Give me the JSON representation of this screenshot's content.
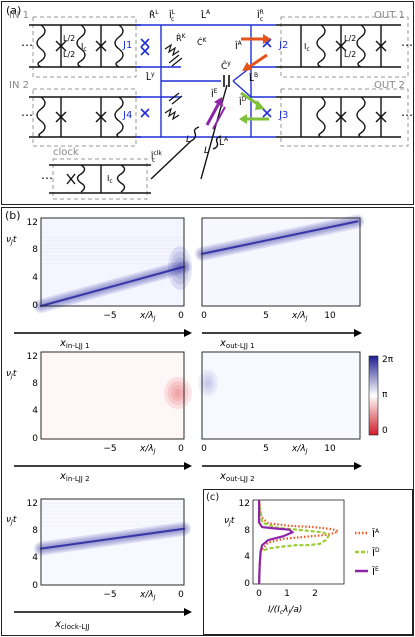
{
  "panel_a": {
    "letter": "(a)",
    "labels": {
      "in1": "IN 1",
      "in2": "IN 2",
      "out1": "OUT 1",
      "out2": "OUT 2",
      "clock": "clock",
      "j1": "J1",
      "j2": "J2",
      "j3": "J3",
      "j4": "J4",
      "lc": "I",
      "lc_sub": "c",
      "half": "L/2",
      "L": "L",
      "Lc2": "I",
      "Lc2_sub": "c",
      "clk_label": "I",
      "clk_sup": "clk",
      "RL": "R̂",
      "RL_sup": "L",
      "IcL": "Î",
      "IcL_sub": "c",
      "IcL_sup": "L",
      "RK": "R̂",
      "RK_sup": "K",
      "CK": "Ĉ",
      "CK_sup": "K",
      "LA": "L̂",
      "LA_sup": "A",
      "IcR": "Î",
      "IcR_sub": "c",
      "IcR_sup": "R",
      "IA": "Î",
      "IA_sup": "A",
      "Cy": "Ĉ",
      "Cy_sup": "y",
      "Ly": "L̂",
      "Ly_sup": "y",
      "LB": "L̂",
      "LB_sup": "B",
      "IE": "Î",
      "IE_sup": "E",
      "ID": "Î",
      "ID_sup": "D",
      "LA2": "L̂",
      "LA2_sup": "A",
      "Icclk": "Î",
      "Icclk_sub": "c",
      "Icclk_sup": "clk"
    },
    "colors": {
      "circuit_blue": "#1f2fd6",
      "orange_arrow": "#e5521a",
      "green_arrow": "#7fbf3a",
      "purple_arrow": "#8e24aa",
      "junction_blue": "#1f2fd6"
    }
  },
  "panel_b": {
    "letter": "(b)",
    "ylabel": "ν_J t",
    "ylabel_main": "ν",
    "ylabel_sub": "J",
    "ylabel_t": "t",
    "colorbar": {
      "ticks": [
        "2π",
        "π",
        "0"
      ],
      "colors": [
        "#e0323a",
        "#ffffff",
        "#2a2aa0"
      ]
    },
    "heatmaps": [
      {
        "id": "in-ljj-1",
        "xtick_labels": [
          "−5",
          "0"
        ],
        "xaxis_label": "x/λ",
        "xaxis_sub": "J",
        "axis_name": "x",
        "axis_sub": "in-LJJ 1",
        "ytick_labels": [
          "12",
          "8",
          "4",
          "0"
        ]
      },
      {
        "id": "out-ljj-1",
        "xtick_labels": [
          "0",
          "5",
          "10"
        ],
        "xaxis_label": "x/λ",
        "xaxis_sub": "J",
        "axis_name": "x",
        "axis_sub": "out-LJJ 1"
      },
      {
        "id": "in-ljj-2",
        "xtick_labels": [
          "−5",
          "0"
        ],
        "xaxis_label": "x/λ",
        "xaxis_sub": "J",
        "axis_name": "x",
        "axis_sub": "in-LJJ 2",
        "ytick_labels": [
          "12",
          "8",
          "4",
          "0"
        ]
      },
      {
        "id": "out-ljj-2",
        "xtick_labels": [
          "0",
          "5",
          "10"
        ],
        "xaxis_label": "x/λ",
        "xaxis_sub": "J",
        "axis_name": "x",
        "axis_sub": "out-LJJ 2"
      },
      {
        "id": "clock-ljj",
        "xtick_labels": [
          "−5",
          "0"
        ],
        "xaxis_label": "x/λ",
        "xaxis_sub": "J",
        "axis_name": "x",
        "axis_sub": "clock-LJJ",
        "ytick_labels": [
          "12",
          "8",
          "4",
          "0"
        ]
      }
    ]
  },
  "panel_c": {
    "letter": "(c)",
    "ylabel_main": "ν",
    "ylabel_sub": "J",
    "ylabel_t": "t",
    "xlabel": "I/(I",
    "xlabel_sub1": "c",
    "xlabel_mid": "λ",
    "xlabel_sub2": "J",
    "xlabel_end": "/a)",
    "legend": [
      {
        "label": "Î",
        "sup": "A",
        "color": "#f0541e",
        "style": "dotted"
      },
      {
        "label": "Î",
        "sup": "D",
        "color": "#9acd32",
        "style": "dashed"
      },
      {
        "label": "Î",
        "sup": "E",
        "color": "#8e24aa",
        "style": "solid"
      }
    ]
  },
  "chart_data": [
    {
      "type": "heatmap",
      "title": "",
      "xlabel": "x/λJ (x_in-LJJ 1)",
      "ylabel": "νJ t",
      "xlim": [
        -10.5,
        0
      ],
      "ylim": [
        0,
        13
      ],
      "xticks": [
        -5,
        0
      ],
      "yticks": [
        0,
        4,
        8,
        12
      ],
      "colorscale": "0 red, π white, 2π blue",
      "feature": "blue 2π kink moving from x≈-10 at t≈0 to x≈0 at t≈6"
    },
    {
      "type": "heatmap",
      "title": "",
      "xlabel": "x/λJ (x_out-LJJ 1)",
      "ylabel": "νJ t",
      "xlim": [
        0,
        12
      ],
      "ylim": [
        0,
        13
      ],
      "xticks": [
        0,
        5,
        10
      ],
      "yticks": [
        0,
        4,
        8,
        12
      ],
      "feature": "blue kink emerging at x=0 at t≈8 reaching x≈12 at t≈12.5"
    },
    {
      "type": "heatmap",
      "title": "",
      "xlabel": "x/λJ (x_in-LJJ 2)",
      "ylabel": "νJ t",
      "xlim": [
        -10.5,
        0
      ],
      "ylim": [
        0,
        13
      ],
      "xticks": [
        -5,
        0
      ],
      "yticks": [
        0,
        4,
        8,
        12
      ],
      "feature": "faint red region near x=0 around t≈6-8"
    },
    {
      "type": "heatmap",
      "title": "",
      "xlabel": "x/λJ (x_out-LJJ 2)",
      "ylabel": "νJ t",
      "xlim": [
        0,
        12
      ],
      "ylim": [
        0,
        13
      ],
      "xticks": [
        0,
        5,
        10
      ],
      "yticks": [
        0,
        4,
        8,
        12
      ],
      "feature": "faint blue near x=0 around t≈8"
    },
    {
      "type": "heatmap",
      "title": "",
      "xlabel": "x/λJ (x_clock-LJJ)",
      "ylabel": "νJ t",
      "xlim": [
        -10.5,
        0
      ],
      "ylim": [
        0,
        13
      ],
      "xticks": [
        -5,
        0
      ],
      "yticks": [
        0,
        4,
        8,
        12
      ],
      "feature": "blue kink from x≈-10.5 at t≈5.5 to x≈0 at t≈8.5"
    },
    {
      "type": "line",
      "title": "",
      "xlabel": "I/(Ic λJ/a)",
      "ylabel": "νJ t",
      "xlim": [
        -0.2,
        2.8
      ],
      "ylim": [
        0,
        13
      ],
      "xticks": [
        0,
        1,
        2
      ],
      "yticks": [
        0,
        4,
        8,
        12
      ],
      "series": [
        {
          "name": "Î^A",
          "x": [
            0.0,
            0.02,
            0.05,
            0.3,
            0.8,
            1.5,
            2.2,
            2.5,
            2.6,
            2.4,
            1.8,
            1.0,
            0.3,
            0.05,
            0.0
          ],
          "y": [
            0,
            3,
            5,
            6.4,
            7.0,
            7.3,
            7.6,
            7.9,
            8.2,
            8.5,
            8.8,
            9.0,
            9.4,
            10.5,
            13
          ]
        },
        {
          "name": "Î^D",
          "x": [
            0.0,
            0.02,
            0.05,
            0.3,
            0.8,
            1.2,
            1.6,
            2.0,
            2.2,
            2.3,
            2.1,
            1.5,
            0.6,
            0.1,
            0.0
          ],
          "y": [
            0,
            3,
            5,
            5.5,
            5.8,
            6.0,
            6.0,
            6.2,
            6.8,
            7.5,
            8.0,
            8.3,
            8.7,
            9.5,
            13
          ]
        },
        {
          "name": "Î^E",
          "x": [
            0.0,
            0.02,
            0.05,
            0.1,
            0.3,
            0.8,
            1.1,
            1.0,
            0.5,
            0.1,
            0.0,
            0.0
          ],
          "y": [
            0,
            3,
            5,
            6.0,
            6.8,
            7.4,
            8.0,
            8.4,
            8.6,
            8.8,
            9.5,
            13
          ]
        }
      ]
    }
  ]
}
